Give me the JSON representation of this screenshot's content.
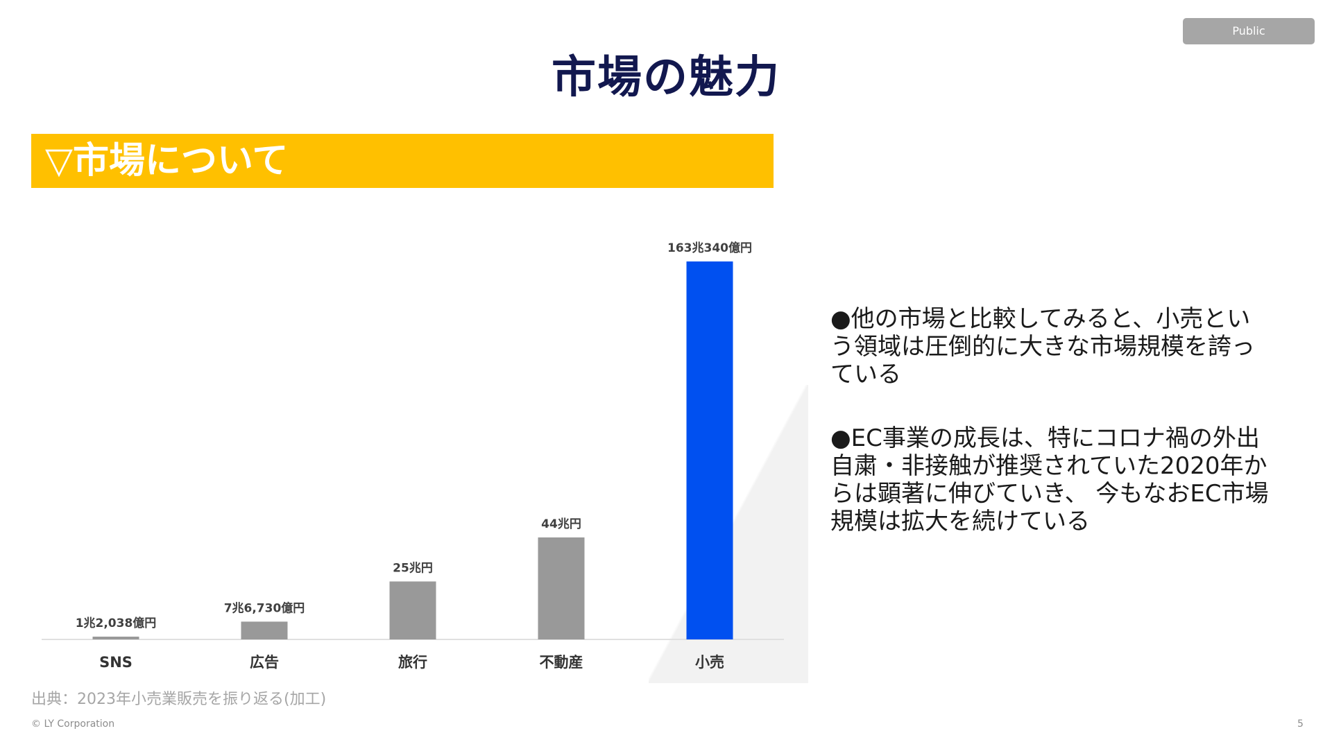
{
  "badge": "Public",
  "title": "市場の魅力",
  "section_heading": "▽市場について",
  "bullets": [
    "●他の市場と比較してみると、小売とい\nう領域は圧倒的に大きな市場規模を誇っ\nている",
    "●EC事業の成長は、特にコロナ禍の外出\n自粛・非接触が推奨されていた2020年か\nらは顕著に伸びていき、 今もなおEC市場\n規模は拡大を続けている"
  ],
  "source": "出典：2023年小売業販売を振り返る(加工)",
  "copyright": "© LY Corporation",
  "page_number": "5",
  "colors": {
    "title": "#12184f",
    "banner": "#ffc000",
    "bar_default": "#999999",
    "bar_highlight": "#0050f0"
  },
  "chart_data": {
    "type": "bar",
    "categories": [
      "SNS",
      "広告",
      "旅行",
      "不動産",
      "小売"
    ],
    "values": [
      1.2038,
      7.673,
      25,
      44,
      163.034
    ],
    "value_labels": [
      "1兆2,038億円",
      "7兆6,730億円",
      "25兆円",
      "44兆円",
      "163兆340億円"
    ],
    "highlight": "小売",
    "title": "",
    "xlabel": "",
    "ylabel": "",
    "grid": false
  }
}
